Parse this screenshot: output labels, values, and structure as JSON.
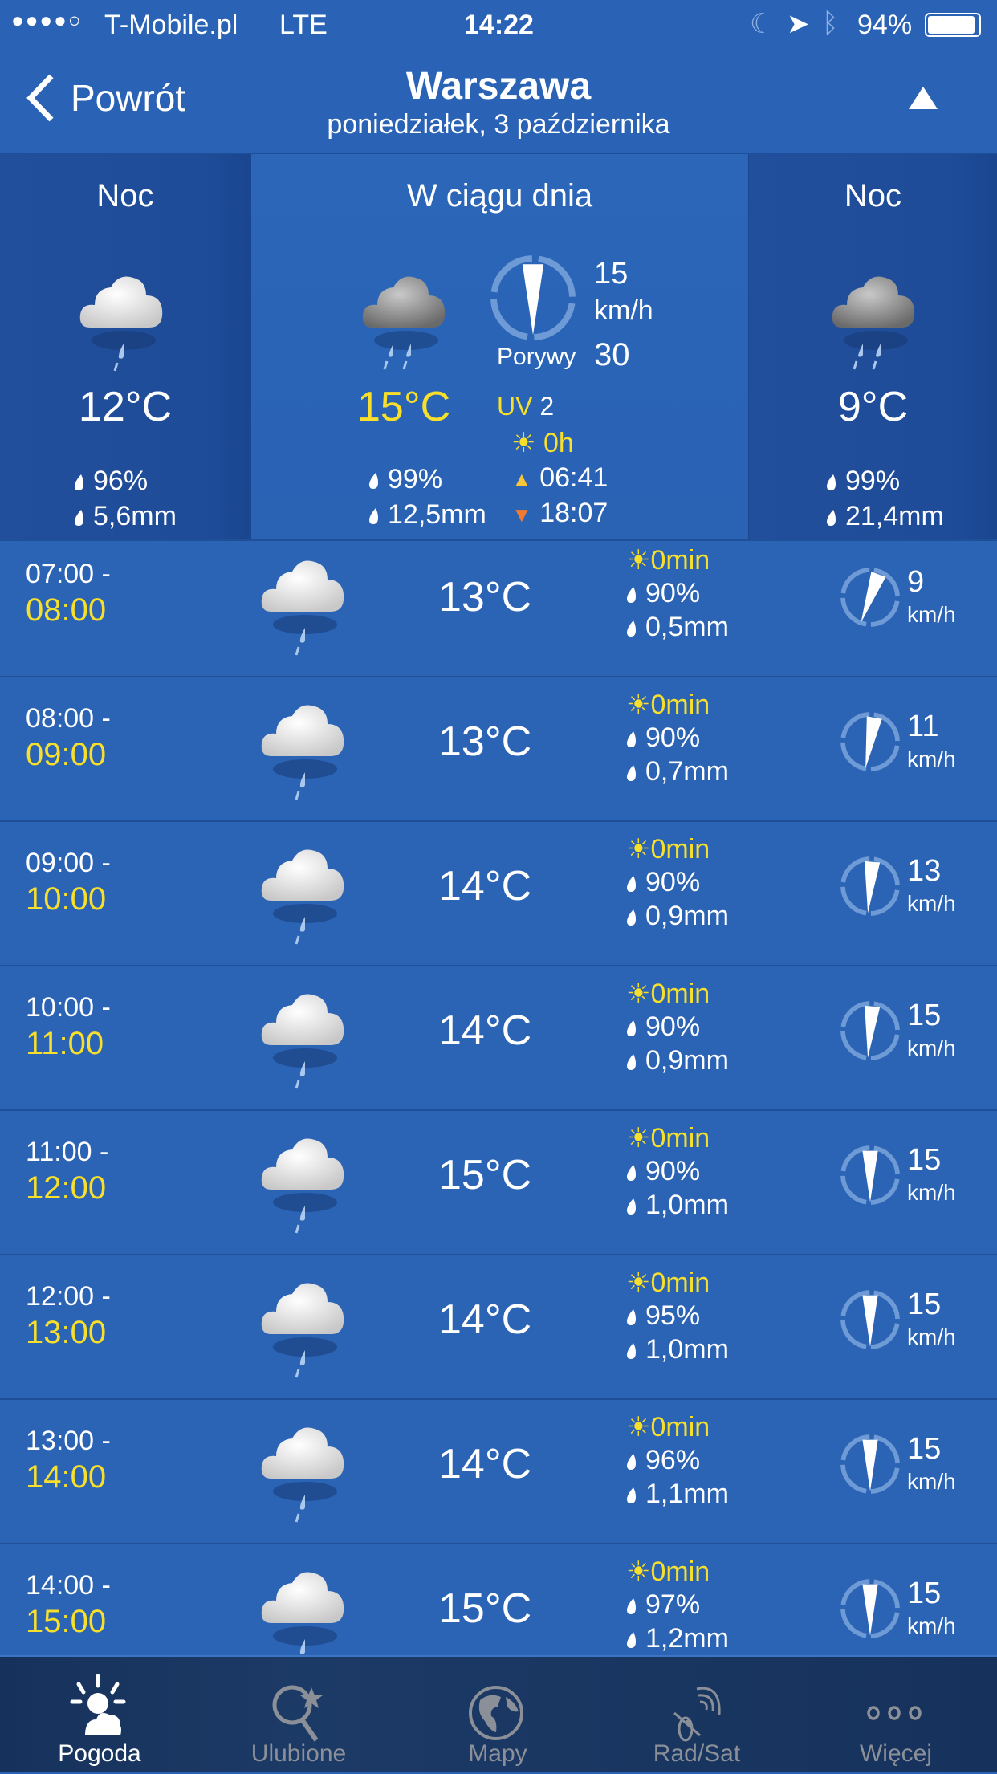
{
  "status_bar": {
    "carrier": "T-Mobile.pl",
    "network": "LTE",
    "time": "14:22",
    "battery": "94%",
    "signal_bars": 4
  },
  "header": {
    "back_label": "Powrót",
    "city": "Warszawa",
    "date": "poniedziałek, 3 października"
  },
  "summary": {
    "night1": {
      "label": "Noc",
      "temp": "12°C",
      "humidity": "96%",
      "precip": "5,6mm"
    },
    "day": {
      "label": "W ciągu dnia",
      "temp": "15°C",
      "wind_speed": "15",
      "wind_unit": "km/h",
      "gusts_label": "Porywy",
      "gusts": "30",
      "uv_label": "UV",
      "uv": "2",
      "sun_hours": "0h",
      "humidity": "99%",
      "precip": "12,5mm",
      "sunrise": "06:41",
      "sunset": "18:07"
    },
    "night2": {
      "label": "Noc",
      "temp": "9°C",
      "humidity": "99%",
      "precip": "21,4mm"
    }
  },
  "hours": [
    {
      "from": "07:00 -",
      "to": "08:00",
      "temp": "13°C",
      "sun": "0min",
      "humidity": "90%",
      "precip": "0,5mm",
      "wind": "9",
      "unit": "km/h",
      "dir": 20
    },
    {
      "from": "08:00 -",
      "to": "09:00",
      "temp": "13°C",
      "sun": "0min",
      "humidity": "90%",
      "precip": "0,7mm",
      "wind": "11",
      "unit": "km/h",
      "dir": 10
    },
    {
      "from": "09:00 -",
      "to": "10:00",
      "temp": "14°C",
      "sun": "0min",
      "humidity": "90%",
      "precip": "0,9mm",
      "wind": "13",
      "unit": "km/h",
      "dir": 5
    },
    {
      "from": "10:00 -",
      "to": "11:00",
      "temp": "14°C",
      "sun": "0min",
      "humidity": "90%",
      "precip": "0,9mm",
      "wind": "15",
      "unit": "km/h",
      "dir": 5
    },
    {
      "from": "11:00 -",
      "to": "12:00",
      "temp": "15°C",
      "sun": "0min",
      "humidity": "90%",
      "precip": "1,0mm",
      "wind": "15",
      "unit": "km/h",
      "dir": 0
    },
    {
      "from": "12:00 -",
      "to": "13:00",
      "temp": "14°C",
      "sun": "0min",
      "humidity": "95%",
      "precip": "1,0mm",
      "wind": "15",
      "unit": "km/h",
      "dir": 0
    },
    {
      "from": "13:00 -",
      "to": "14:00",
      "temp": "14°C",
      "sun": "0min",
      "humidity": "96%",
      "precip": "1,1mm",
      "wind": "15",
      "unit": "km/h",
      "dir": 0
    },
    {
      "from": "14:00 -",
      "to": "15:00",
      "temp": "15°C",
      "sun": "0min",
      "humidity": "97%",
      "precip": "1,2mm",
      "wind": "15",
      "unit": "km/h",
      "dir": 0
    }
  ],
  "tabs": [
    {
      "label": "Pogoda",
      "icon": "weather-icon",
      "active": true
    },
    {
      "label": "Ulubione",
      "icon": "favorites-search-icon"
    },
    {
      "label": "Mapy",
      "icon": "globe-icon"
    },
    {
      "label": "Rad/Sat",
      "icon": "satellite-icon"
    },
    {
      "label": "Więcej",
      "icon": "more-icon"
    }
  ],
  "colors": {
    "background": "#2a63b6",
    "accent": "#f7df2b",
    "tabbar": "#16325c"
  }
}
